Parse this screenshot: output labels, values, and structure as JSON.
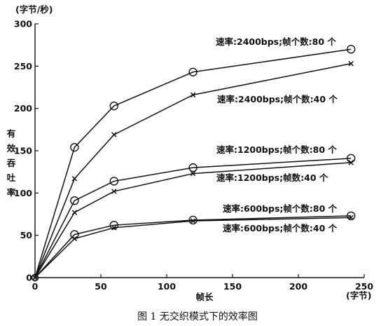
{
  "chart_data": {
    "type": "line",
    "title": "",
    "xlabel": "帧长",
    "ylabel": "有效吞吐率",
    "x_unit": "(字节)",
    "y_unit": "(字节/秒)",
    "xlim": [
      0,
      250
    ],
    "ylim": [
      0,
      300
    ],
    "xticks": [
      0,
      50,
      100,
      150,
      200,
      250
    ],
    "yticks": [
      0,
      50,
      100,
      150,
      200,
      250,
      300
    ],
    "grid": false,
    "series": [
      {
        "name": "速率:2400bps;帧个数:80 个",
        "marker": "o",
        "x": [
          0,
          30,
          60,
          120,
          240
        ],
        "y": [
          0,
          154,
          203,
          243,
          270
        ]
      },
      {
        "name": "速率:2400bps;帧个数:40 个",
        "marker": "x",
        "x": [
          0,
          30,
          60,
          120,
          240
        ],
        "y": [
          0,
          117,
          169,
          216,
          253
        ]
      },
      {
        "name": "速率:1200bps;帧个数:80 个",
        "marker": "o",
        "x": [
          0,
          30,
          60,
          120,
          240
        ],
        "y": [
          0,
          91,
          114,
          130,
          141
        ]
      },
      {
        "name": "速率:1200bps;帧数:40 个",
        "marker": "x",
        "x": [
          0,
          30,
          60,
          120,
          240
        ],
        "y": [
          0,
          77,
          102,
          123,
          136
        ]
      },
      {
        "name": "速率:600bps;帧个数:80 个",
        "marker": "o",
        "x": [
          0,
          30,
          60,
          120,
          240
        ],
        "y": [
          0,
          51,
          62,
          68,
          73
        ]
      },
      {
        "name": "速率:600bps;帧个数:40 个",
        "marker": "x",
        "x": [
          0,
          30,
          60,
          120,
          240
        ],
        "y": [
          0,
          46,
          59,
          67,
          71
        ]
      }
    ]
  },
  "caption": "图 1  无交织模式下的效率图"
}
